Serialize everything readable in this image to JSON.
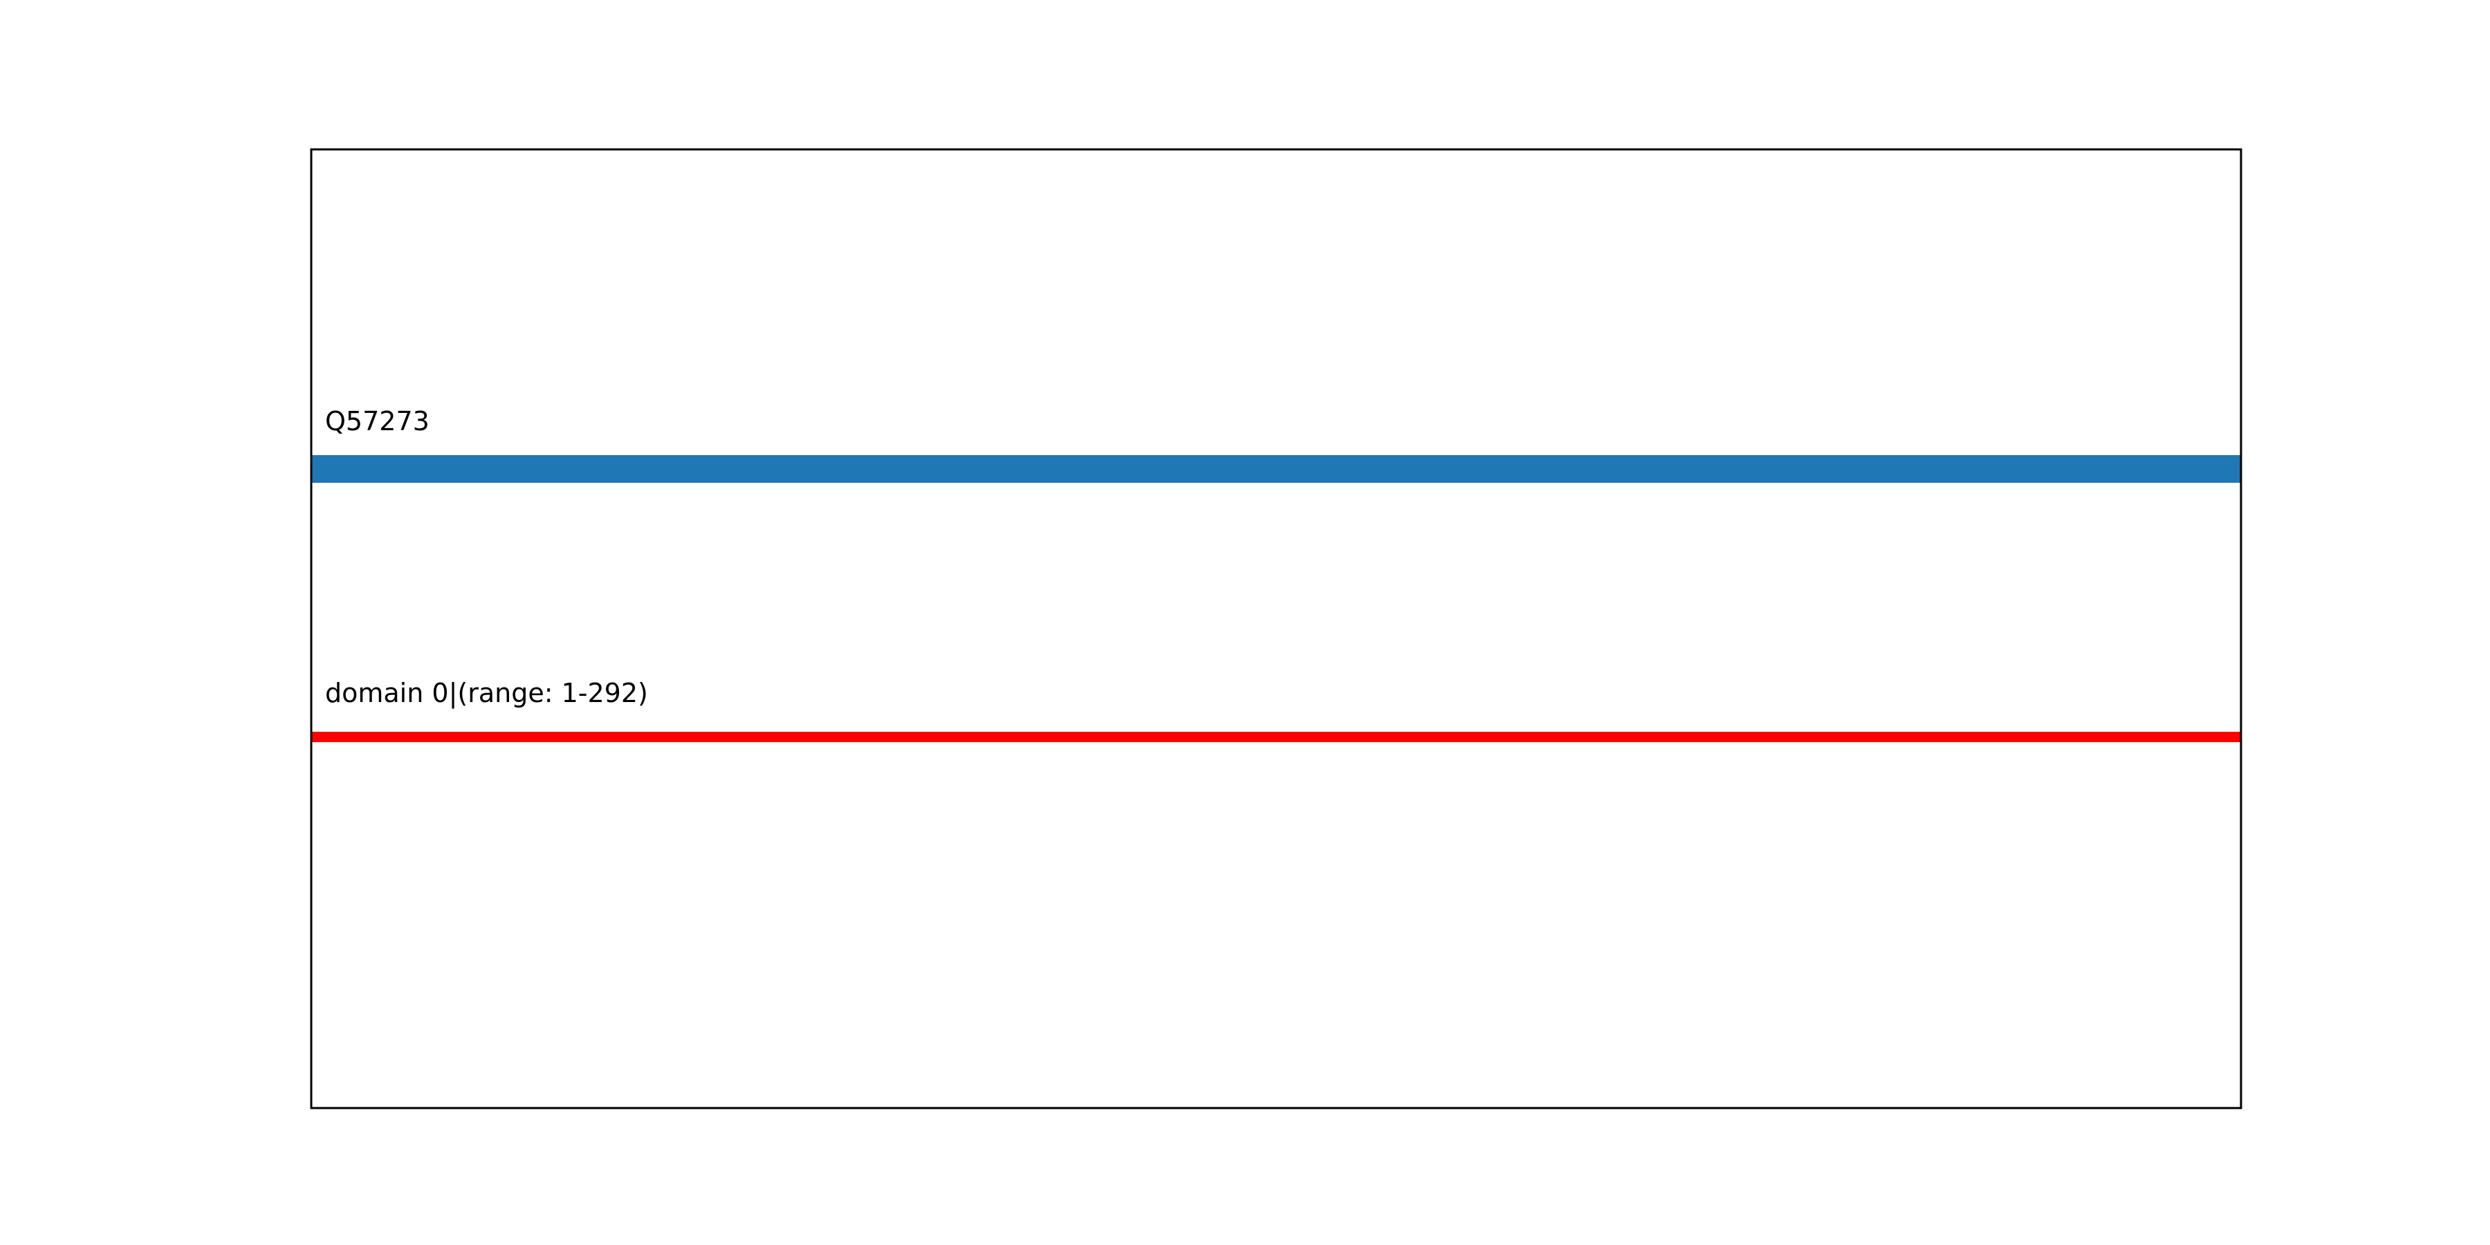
{
  "chart_data": {
    "type": "bar",
    "orientation": "horizontal",
    "title": "",
    "xlabel": "",
    "ylabel": "",
    "grid": false,
    "axis_ticks": false,
    "xlim": [
      1,
      292
    ],
    "tracks": [
      {
        "label": "Q57273",
        "start": 1,
        "end": 292,
        "color": "#1f77b4",
        "thickness": "thick"
      },
      {
        "label": "domain 0|(range: 1-292)",
        "start": 1,
        "end": 292,
        "color": "#ff0000",
        "thickness": "thin"
      }
    ]
  }
}
